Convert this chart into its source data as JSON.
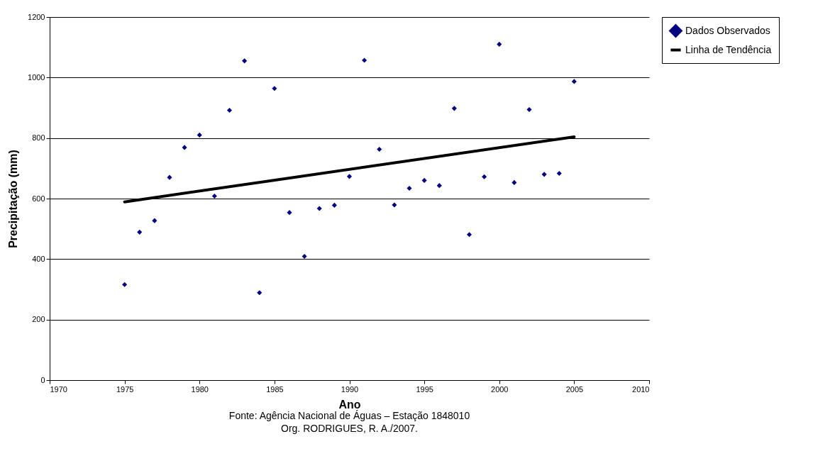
{
  "chart_data": {
    "type": "scatter",
    "xlabel": "Ano",
    "ylabel": "Precipitação (mm)",
    "annotations": [
      "Fonte: Agência Nacional de Águas – Estação 1848010",
      "Org. RODRIGUES, R. A./2007."
    ],
    "x": [
      1975,
      1976,
      1977,
      1978,
      1979,
      1980,
      1981,
      1982,
      1983,
      1984,
      1985,
      1986,
      1987,
      1988,
      1989,
      1990,
      1991,
      1992,
      1993,
      1994,
      1995,
      1996,
      1997,
      1998,
      1999,
      2000,
      2001,
      2002,
      2003,
      2004,
      2005
    ],
    "series": [
      {
        "name": "Dados Observados",
        "color": "#000080",
        "marker": "diamond",
        "values": [
          316,
          489,
          527,
          670,
          769,
          810,
          608,
          892,
          1055,
          289,
          964,
          554,
          409,
          567,
          578,
          673,
          1057,
          763,
          579,
          634,
          660,
          643,
          898,
          481,
          672,
          1110,
          653,
          894,
          680,
          683,
          987
        ]
      },
      {
        "name": "Linha de Tendência",
        "type": "line",
        "marker": "none",
        "color": "#000000",
        "x": [
          1975,
          2005
        ],
        "values": [
          589,
          804
        ]
      }
    ],
    "xlim": [
      1970,
      2010
    ],
    "xticks": [
      1970,
      1975,
      1980,
      1985,
      1990,
      1995,
      2000,
      2005,
      2010
    ],
    "ylim": [
      0,
      1200
    ],
    "yticks": [
      0,
      200,
      400,
      600,
      800,
      1000,
      1200
    ],
    "grid": "y",
    "legend": "right",
    "line_style": "solid"
  }
}
